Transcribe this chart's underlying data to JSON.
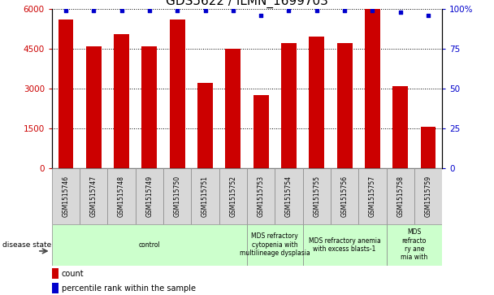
{
  "title": "GDS5622 / ILMN_1699703",
  "samples": [
    "GSM1515746",
    "GSM1515747",
    "GSM1515748",
    "GSM1515749",
    "GSM1515750",
    "GSM1515751",
    "GSM1515752",
    "GSM1515753",
    "GSM1515754",
    "GSM1515755",
    "GSM1515756",
    "GSM1515757",
    "GSM1515758",
    "GSM1515759"
  ],
  "counts": [
    5600,
    4600,
    5050,
    4600,
    5600,
    3200,
    4500,
    2750,
    4700,
    4950,
    4700,
    6000,
    3100,
    1550
  ],
  "percentile_ranks": [
    99,
    99,
    99,
    99,
    99,
    99,
    99,
    96,
    99,
    99,
    99,
    99,
    98,
    96
  ],
  "bar_color": "#cc0000",
  "dot_color": "#0000cc",
  "ylim_left": [
    0,
    6000
  ],
  "ylim_right": [
    0,
    100
  ],
  "yticks_left": [
    0,
    1500,
    3000,
    4500,
    6000
  ],
  "ytick_labels_left": [
    "0",
    "1500",
    "3000",
    "4500",
    "6000"
  ],
  "yticks_right": [
    0,
    25,
    50,
    75,
    100
  ],
  "ytick_labels_right": [
    "0",
    "25",
    "50",
    "75",
    "100%"
  ],
  "disease_groups": [
    {
      "label": "control",
      "start": 0,
      "end": 7,
      "color": "#ccffcc"
    },
    {
      "label": "MDS refractory\ncytopenia with\nmultilineage dysplasia",
      "start": 7,
      "end": 9,
      "color": "#ccffcc"
    },
    {
      "label": "MDS refractory anemia\nwith excess blasts-1",
      "start": 9,
      "end": 12,
      "color": "#ccffcc"
    },
    {
      "label": "MDS\nrefracto\nry ane\nmia with",
      "start": 12,
      "end": 14,
      "color": "#ccffcc"
    }
  ],
  "disease_state_label": "disease state",
  "legend_items": [
    {
      "color": "#cc0000",
      "label": "count"
    },
    {
      "color": "#0000cc",
      "label": "percentile rank within the sample"
    }
  ],
  "bg_color": "#ffffff",
  "tick_label_color_left": "#cc0000",
  "tick_label_color_right": "#0000cc",
  "grid_color": "#000000",
  "title_fontsize": 11,
  "axis_fontsize": 7.5,
  "sample_fontsize": 5.5,
  "disease_fontsize": 5.5
}
